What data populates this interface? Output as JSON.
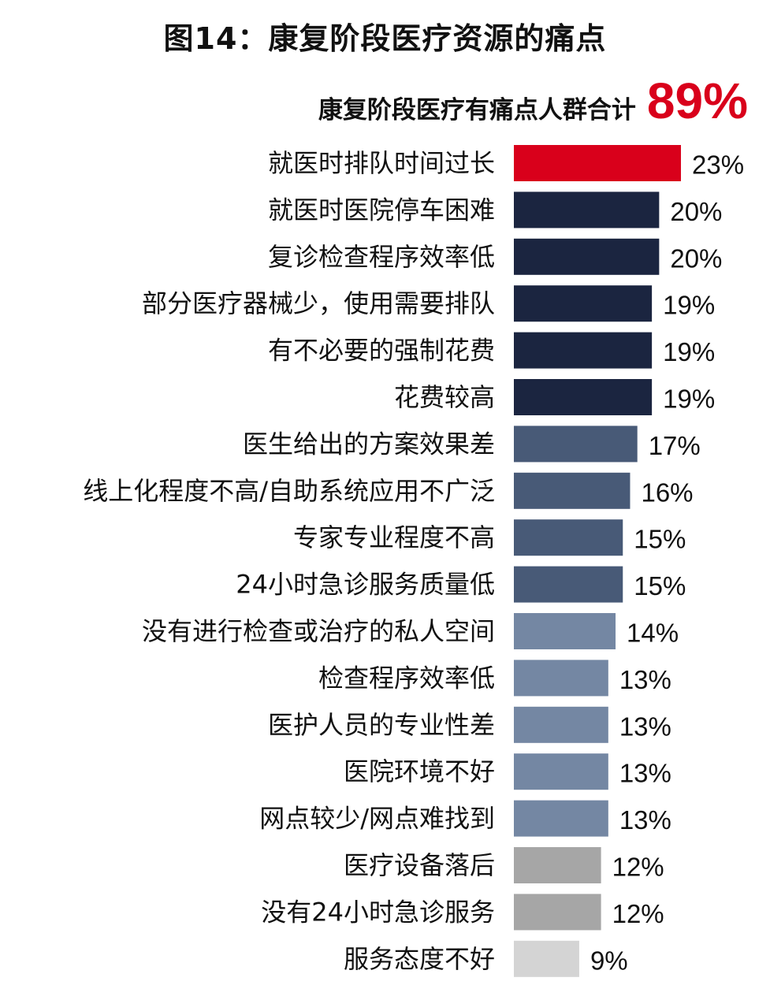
{
  "title": "图14：康复阶段医疗资源的痛点",
  "summary": {
    "label": "康复阶段医疗有痛点人群合计",
    "value": "89%"
  },
  "colors": {
    "highlight": "#d9001b",
    "dark": "#1b2540",
    "mid": "#485a77",
    "light": "#7487a3",
    "gray": "#a6a6a6",
    "lightgray": "#d4d4d4"
  },
  "chart_data": {
    "type": "bar",
    "orientation": "horizontal",
    "categories": [
      "就医时排队时间过长",
      "就医时医院停车困难",
      "复诊检查程序效率低",
      "部分医疗器械少，使用需要排队",
      "有不必要的强制花费",
      "花费较高",
      "医生给出的方案效果差",
      "线上化程度不高/自助系统应用不广泛",
      "专家专业程度不高",
      "24小时急诊服务质量低",
      "没有进行检查或治疗的私人空间",
      "检查程序效率低",
      "医护人员的专业性差",
      "医院环境不好",
      "网点较少/网点难找到",
      "医疗设备落后",
      "没有24小时急诊服务",
      "服务态度不好"
    ],
    "values": [
      23,
      20,
      20,
      19,
      19,
      19,
      17,
      16,
      15,
      15,
      14,
      13,
      13,
      13,
      13,
      12,
      12,
      9
    ],
    "value_labels": [
      "23%",
      "20%",
      "20%",
      "19%",
      "19%",
      "19%",
      "17%",
      "16%",
      "15%",
      "15%",
      "14%",
      "13%",
      "13%",
      "13%",
      "13%",
      "12%",
      "12%",
      "9%"
    ],
    "bar_colors": [
      "highlight",
      "dark",
      "dark",
      "dark",
      "dark",
      "dark",
      "mid",
      "mid",
      "mid",
      "mid",
      "light",
      "light",
      "light",
      "light",
      "light",
      "gray",
      "gray",
      "lightgray"
    ],
    "xlim": [
      0,
      23
    ],
    "grid": false,
    "title": "图14：康复阶段医疗资源的痛点",
    "xlabel": "",
    "ylabel": ""
  }
}
